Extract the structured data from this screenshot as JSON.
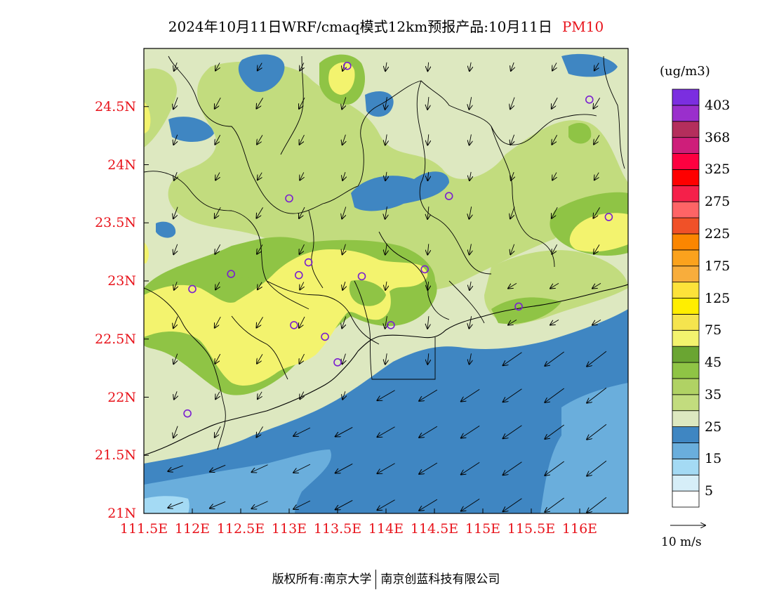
{
  "title": {
    "text": "2024年10月11日WRF/cmaq模式12km预报产品:10月11日",
    "pollutant": "PM10"
  },
  "axes": {
    "lat_ticks": [
      {
        "value": 21.0,
        "label": "21N"
      },
      {
        "value": 21.5,
        "label": "21.5N"
      },
      {
        "value": 22.0,
        "label": "22N"
      },
      {
        "value": 22.5,
        "label": "22.5N"
      },
      {
        "value": 23.0,
        "label": "23N"
      },
      {
        "value": 23.5,
        "label": "23.5N"
      },
      {
        "value": 24.0,
        "label": "24N"
      },
      {
        "value": 24.5,
        "label": "24.5N"
      }
    ],
    "lon_ticks": [
      {
        "value": 111.5,
        "label": "111.5E"
      },
      {
        "value": 112.0,
        "label": "112E"
      },
      {
        "value": 112.5,
        "label": "112.5E"
      },
      {
        "value": 113.0,
        "label": "113E"
      },
      {
        "value": 113.5,
        "label": "113.5E"
      },
      {
        "value": 114.0,
        "label": "114E"
      },
      {
        "value": 114.5,
        "label": "114.5E"
      },
      {
        "value": 115.0,
        "label": "115E"
      },
      {
        "value": 115.5,
        "label": "115.5E"
      },
      {
        "value": 116.0,
        "label": "116E"
      }
    ],
    "lon_range": [
      111.5,
      116.5
    ],
    "lat_range": [
      21.0,
      25.0
    ]
  },
  "colorbar": {
    "unit": "(ug/m3)",
    "bins": [
      {
        "color": "#ffffff",
        "label": "5"
      },
      {
        "color": "#d6eef8",
        "label": ""
      },
      {
        "color": "#a4daf4",
        "label": "15"
      },
      {
        "color": "#6aaedc",
        "label": ""
      },
      {
        "color": "#3f86c2",
        "label": "25"
      },
      {
        "color": "#dde8c0",
        "label": ""
      },
      {
        "color": "#c2dc7e",
        "label": "35"
      },
      {
        "color": "#b0d264",
        "label": ""
      },
      {
        "color": "#8fc445",
        "label": "45"
      },
      {
        "color": "#6aa532",
        "label": ""
      },
      {
        "color": "#f3f36e",
        "label": "75"
      },
      {
        "color": "#f5e44e",
        "label": ""
      },
      {
        "color": "#ffee00",
        "label": "125"
      },
      {
        "color": "#fde23a",
        "label": ""
      },
      {
        "color": "#f8ad3c",
        "label": "175"
      },
      {
        "color": "#fba21d",
        "label": ""
      },
      {
        "color": "#fb8600",
        "label": "225"
      },
      {
        "color": "#f05128",
        "label": ""
      },
      {
        "color": "#fe6466",
        "label": "275"
      },
      {
        "color": "#f5204a",
        "label": ""
      },
      {
        "color": "#fe0000",
        "label": "325"
      },
      {
        "color": "#fe0040",
        "label": ""
      },
      {
        "color": "#ce1e7a",
        "label": "368"
      },
      {
        "color": "#b42e5c",
        "label": ""
      },
      {
        "color": "#9a2fcc",
        "label": "403"
      },
      {
        "color": "#7b2ee0",
        "label": ""
      }
    ]
  },
  "wind_reference": {
    "label": "10 m/s"
  },
  "stations": [
    {
      "lon": 113.6,
      "lat": 24.85
    },
    {
      "lon": 116.1,
      "lat": 24.56
    },
    {
      "lon": 113.0,
      "lat": 23.71
    },
    {
      "lon": 114.65,
      "lat": 23.73
    },
    {
      "lon": 116.3,
      "lat": 23.55
    },
    {
      "lon": 112.4,
      "lat": 23.06
    },
    {
      "lon": 112.0,
      "lat": 22.93
    },
    {
      "lon": 113.1,
      "lat": 23.05
    },
    {
      "lon": 113.2,
      "lat": 23.16
    },
    {
      "lon": 113.75,
      "lat": 23.04
    },
    {
      "lon": 114.4,
      "lat": 23.1
    },
    {
      "lon": 113.05,
      "lat": 22.62
    },
    {
      "lon": 113.37,
      "lat": 22.52
    },
    {
      "lon": 114.05,
      "lat": 22.62
    },
    {
      "lon": 113.5,
      "lat": 22.3
    },
    {
      "lon": 115.37,
      "lat": 22.78
    },
    {
      "lon": 111.95,
      "lat": 21.86
    }
  ],
  "footer": {
    "left": "版权所有:南京大学",
    "right": "南京创蓝科技有限公司"
  }
}
